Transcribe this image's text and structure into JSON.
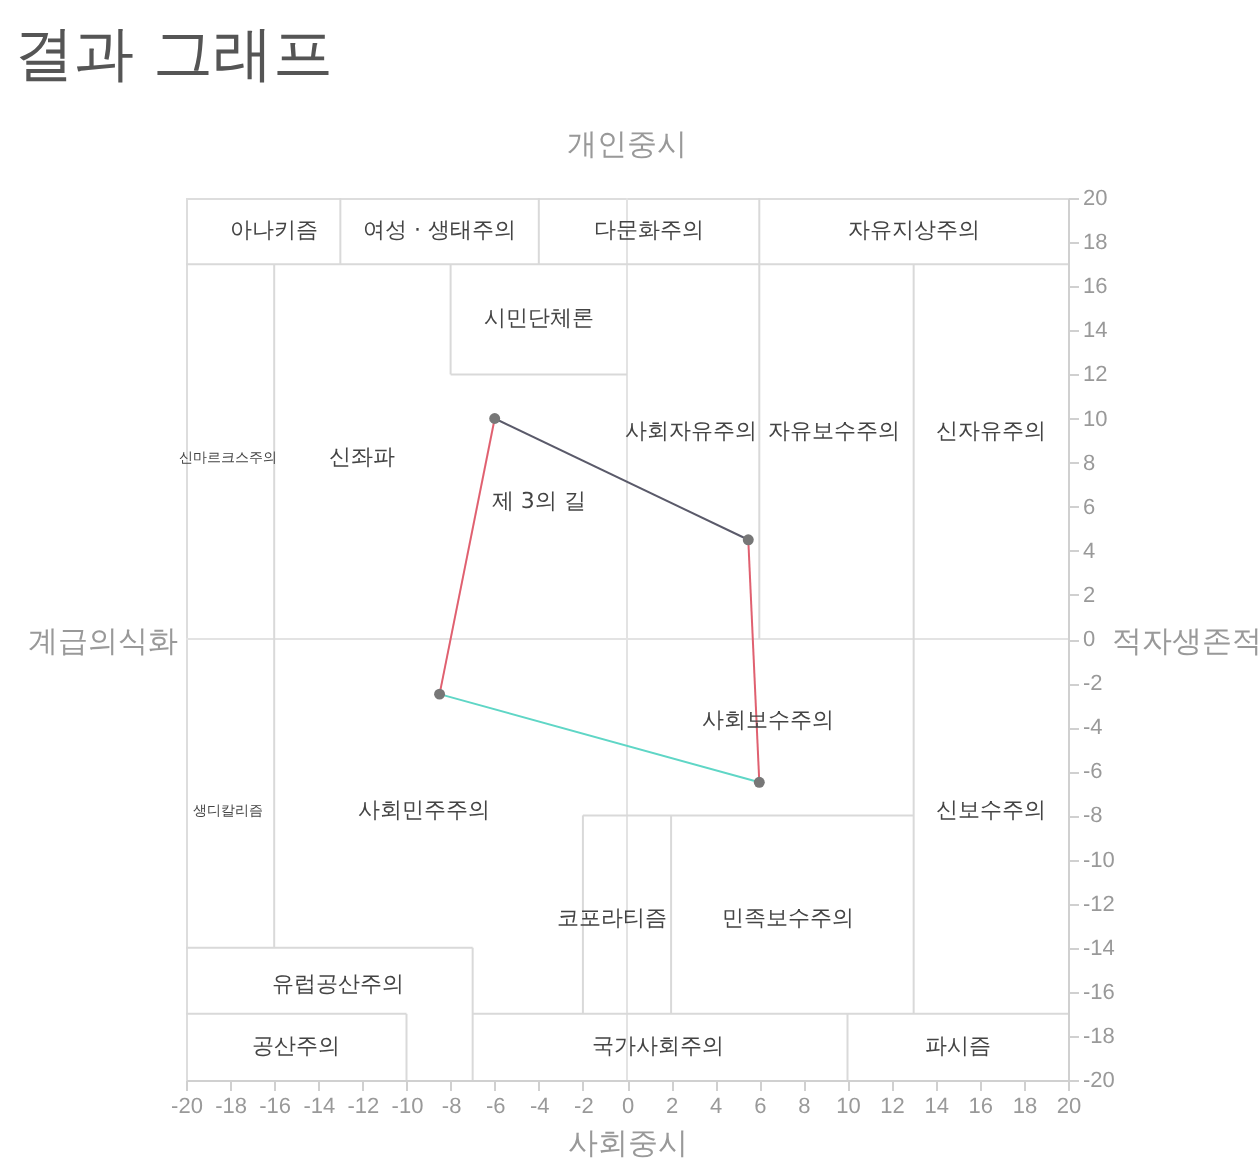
{
  "chart_data": {
    "type": "line",
    "title": "결과 그래프",
    "xlabel": "사회중시",
    "x2label": "개인중시",
    "ylabel": "계급의식화",
    "y2label": "적자생존적",
    "xlim": [
      -20,
      20
    ],
    "ylim": [
      -20,
      20
    ],
    "xticks": [
      -20,
      -18,
      -16,
      -14,
      -12,
      -10,
      -8,
      -6,
      -4,
      -2,
      0,
      2,
      4,
      6,
      8,
      10,
      12,
      14,
      16,
      18,
      20
    ],
    "yticks": [
      -20,
      -18,
      -16,
      -14,
      -12,
      -10,
      -8,
      -6,
      -4,
      -2,
      0,
      2,
      4,
      6,
      8,
      10,
      12,
      14,
      16,
      18,
      20
    ],
    "grid": false,
    "line_style": "solid",
    "series": [
      {
        "color": "#e3e3e3",
        "x": [
          0,
          0
        ],
        "values": [
          20,
          -20
        ]
      },
      {
        "color": "#e3e3e3",
        "x": [
          -20,
          20
        ],
        "values": [
          0,
          0
        ]
      },
      {
        "color": "#5a5a6a",
        "x": [
          -6,
          5.5
        ],
        "values": [
          10,
          4.5
        ]
      },
      {
        "color": "#e06070",
        "x": [
          5.5,
          6
        ],
        "values": [
          4.5,
          -6.5
        ]
      },
      {
        "color": "#5fd6c6",
        "x": [
          6,
          -8.5
        ],
        "values": [
          -6.5,
          -2.5
        ]
      },
      {
        "color": "#e06070",
        "x": [
          -8.5,
          -6
        ],
        "values": [
          -2.5,
          10
        ]
      },
      {
        "type": "scatter",
        "marker": "circle",
        "color": "#777777",
        "x": [
          -6,
          5.5,
          6,
          -8.5
        ],
        "values": [
          10,
          4.5,
          -6.5,
          -2.5
        ]
      },
      {
        "color": "#d9d9d9",
        "x": [
          -20,
          20
        ],
        "values": [
          17,
          17
        ]
      },
      {
        "color": "#d9d9d9",
        "x": [
          -13,
          -13
        ],
        "values": [
          20,
          17
        ]
      },
      {
        "color": "#d9d9d9",
        "x": [
          -4,
          -4
        ],
        "values": [
          20,
          17
        ]
      },
      {
        "color": "#d9d9d9",
        "x": [
          6,
          6
        ],
        "values": [
          20,
          0
        ]
      },
      {
        "color": "#d9d9d9",
        "x": [
          -16,
          -16
        ],
        "values": [
          17,
          -14
        ]
      },
      {
        "color": "#d9d9d9",
        "x": [
          -8,
          -8
        ],
        "values": [
          17,
          12
        ]
      },
      {
        "color": "#d9d9d9",
        "x": [
          -8,
          0
        ],
        "values": [
          12,
          12
        ]
      },
      {
        "color": "#d9d9d9",
        "x": [
          13,
          13
        ],
        "values": [
          17,
          -17
        ]
      },
      {
        "color": "#d9d9d9",
        "x": [
          -2,
          13
        ],
        "values": [
          -8,
          -8
        ]
      },
      {
        "color": "#d9d9d9",
        "x": [
          -2,
          -2
        ],
        "values": [
          -8,
          -17
        ]
      },
      {
        "color": "#d9d9d9",
        "x": [
          2,
          2
        ],
        "values": [
          -8,
          -17
        ]
      },
      {
        "color": "#d9d9d9",
        "x": [
          -20,
          -7
        ],
        "values": [
          -14,
          -14
        ]
      },
      {
        "color": "#d9d9d9",
        "x": [
          -7,
          -7
        ],
        "values": [
          -14,
          -20
        ]
      },
      {
        "color": "#d9d9d9",
        "x": [
          -20,
          -10
        ],
        "values": [
          -17,
          -17
        ]
      },
      {
        "color": "#d9d9d9",
        "x": [
          -7,
          20
        ],
        "values": [
          -17,
          -17
        ]
      },
      {
        "color": "#d9d9d9",
        "x": [
          -10,
          -10
        ],
        "values": [
          -17,
          -20
        ]
      },
      {
        "color": "#d9d9d9",
        "x": [
          10,
          10
        ],
        "values": [
          -17,
          -20
        ]
      }
    ],
    "annotations": [
      "아나키즘",
      "여성 · 생태주의",
      "다문화주의",
      "자유지상주의",
      "시민단체론",
      "신마르크스주의",
      "신좌파",
      "제 3의 길",
      "사회자유주의",
      "자유보수주의",
      "신자유주의",
      "사회보수주의",
      "생디칼리즘",
      "사회민주주의",
      "신보수주의",
      "코포라티즘",
      "민족보수주의",
      "유럽공산주의",
      "공산주의",
      "국가사회주의",
      "파시즘"
    ]
  }
}
